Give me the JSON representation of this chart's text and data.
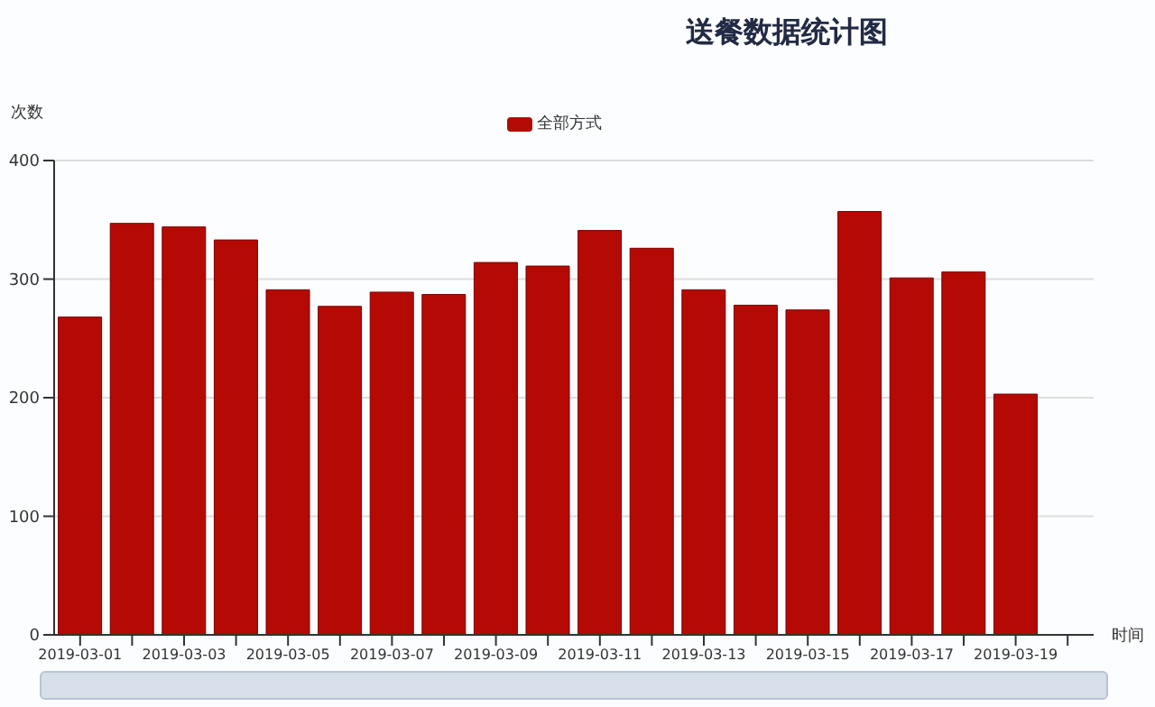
{
  "chart_data": {
    "type": "bar",
    "title": "送餐数据统计图",
    "xlabel": "时间",
    "ylabel": "次数",
    "categories": [
      "2019-03-01",
      null,
      "2019-03-03",
      null,
      "2019-03-05",
      null,
      "2019-03-07",
      null,
      "2019-03-09",
      null,
      "2019-03-11",
      null,
      "2019-03-13",
      null,
      "2019-03-15",
      null,
      "2019-03-17",
      null,
      "2019-03-19",
      null
    ],
    "series": [
      {
        "name": "全部方式",
        "color": "#b50a04",
        "values": [
          268,
          347,
          344,
          333,
          291,
          277,
          289,
          287,
          314,
          311,
          341,
          326,
          291,
          278,
          274,
          357,
          301,
          306,
          203,
          null
        ]
      }
    ],
    "ylim": [
      0,
      400
    ],
    "yticks": [
      0,
      100,
      200,
      300,
      400
    ],
    "grid": "y",
    "legend": "top"
  }
}
